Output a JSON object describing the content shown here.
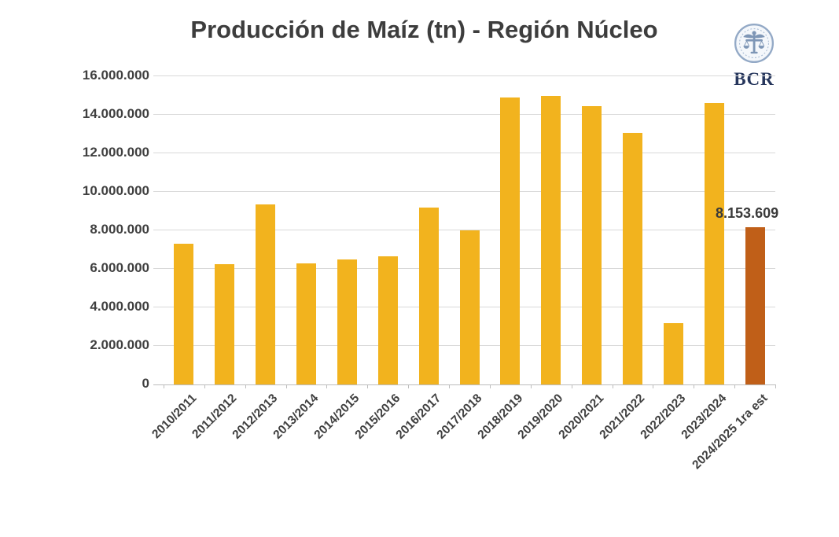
{
  "title": "Producción de Maíz (tn) - Región Núcleo",
  "logo": {
    "text": "BCR",
    "seal_icon": "bcr-circular-seal"
  },
  "colors": {
    "bar": "#F2B31E",
    "highlight_bar": "#C05F18",
    "gridline": "#D9D9D9",
    "axis": "#BDBDBD",
    "text": "#404040",
    "logo_navy": "#26365C"
  },
  "chart_data": {
    "type": "bar",
    "title": "Producción de Maíz (tn) - Región Núcleo",
    "unit": "tn",
    "categories": [
      "2010/2011",
      "2011/2012",
      "2012/2013",
      "2013/2014",
      "2014/2015",
      "2015/2016",
      "2016/2017",
      "2017/2018",
      "2018/2019",
      "2019/2020",
      "2020/2021",
      "2021/2022",
      "2022/2023",
      "2023/2024",
      "2024/2025 1ra est"
    ],
    "values": [
      7300000,
      6250000,
      9350000,
      6300000,
      6500000,
      6650000,
      9200000,
      8000000,
      14900000,
      15000000,
      14450000,
      13050000,
      3200000,
      14600000,
      8153609
    ],
    "highlight_index": 14,
    "annotation": {
      "index": 14,
      "text": "8.153.609"
    },
    "xlabel": "",
    "ylabel": "",
    "ylim": [
      0,
      16000000
    ],
    "ytick_step": 2000000,
    "ytick_labels": [
      "0",
      "2.000.000",
      "4.000.000",
      "6.000.000",
      "8.000.000",
      "10.000.000",
      "12.000.000",
      "14.000.000",
      "16.000.000"
    ],
    "grid": true,
    "legend": "none",
    "x_tick_rotation_deg": -45
  }
}
